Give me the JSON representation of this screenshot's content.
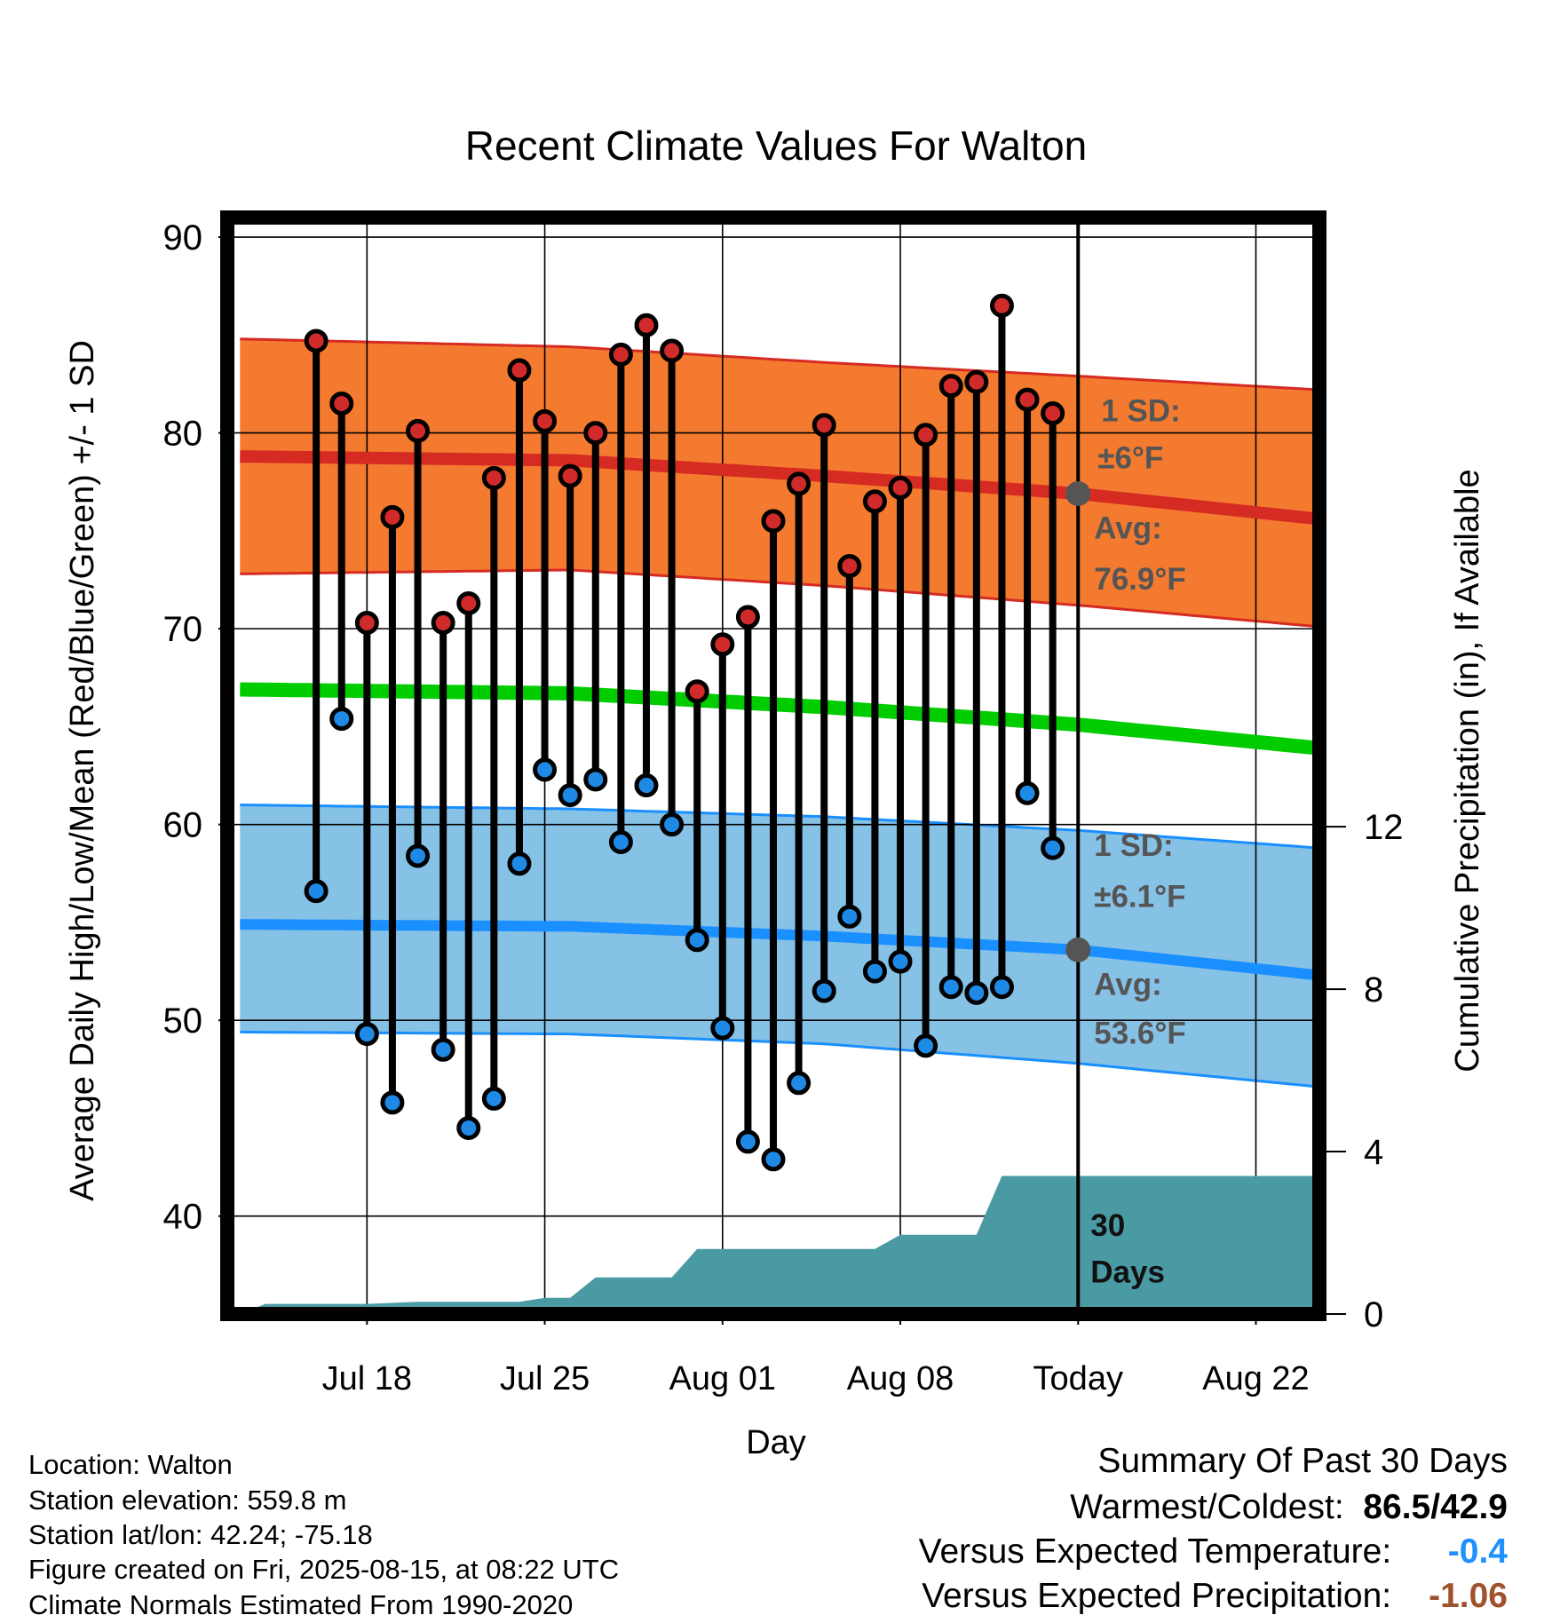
{
  "chart_data": {
    "type": "line",
    "title": "Recent Climate Values For Walton",
    "xlabel": "Day",
    "ylabel": "Average Daily High/Low/Mean (Red/Blue/Green) +/- 1 SD",
    "y2label": "Cumulative Precipitation (in), If Available",
    "x_unit": "day (0 = Today, Aug 15)",
    "xlim": [
      -33.5,
      9.5
    ],
    "ylim": [
      35,
      91
    ],
    "y2lim": [
      0,
      27
    ],
    "x_tick_labels": [
      {
        "x": -28,
        "label": "Jul 18"
      },
      {
        "x": -21,
        "label": "Jul 25"
      },
      {
        "x": -14,
        "label": "Aug 01"
      },
      {
        "x": -7,
        "label": "Aug 08"
      },
      {
        "x": 0,
        "label": "Today"
      },
      {
        "x": 7,
        "label": "Aug 22"
      }
    ],
    "y_ticks": [
      40,
      50,
      60,
      70,
      80,
      90
    ],
    "y2_ticks": [
      0,
      4,
      8,
      12
    ],
    "daily_high": [
      84.7,
      81.5,
      70.3,
      75.7,
      80.1,
      70.3,
      71.3,
      77.7,
      83.2,
      80.6,
      77.8,
      80.0,
      84.0,
      85.5,
      84.2,
      66.8,
      69.2,
      70.6,
      75.5,
      77.4,
      80.4,
      73.2,
      76.5,
      77.2,
      79.9,
      82.4,
      82.6,
      86.5,
      81.7,
      81.0
    ],
    "daily_low": [
      56.6,
      65.4,
      49.3,
      45.8,
      58.4,
      48.5,
      44.5,
      46.0,
      58.0,
      62.8,
      61.5,
      62.3,
      59.1,
      62.0,
      60.0,
      54.1,
      49.6,
      43.8,
      42.9,
      46.8,
      51.5,
      55.3,
      52.5,
      53.0,
      48.7,
      51.7,
      51.4,
      51.7,
      61.6,
      58.8
    ],
    "daily_x_start": -30,
    "normal_high_avg": [
      [
        -33,
        78.8
      ],
      [
        -20,
        78.6
      ],
      [
        -10,
        77.8
      ],
      [
        0,
        76.9
      ],
      [
        9.5,
        75.6
      ]
    ],
    "normal_high_upper": [
      [
        -33,
        84.8
      ],
      [
        -20,
        84.4
      ],
      [
        -10,
        83.6
      ],
      [
        0,
        82.9
      ],
      [
        9.5,
        82.2
      ]
    ],
    "normal_high_lower": [
      [
        -33,
        72.8
      ],
      [
        -20,
        73.0
      ],
      [
        -10,
        72.2
      ],
      [
        0,
        71.2
      ],
      [
        9.5,
        70.1
      ]
    ],
    "normal_mean": [
      [
        -33,
        66.9
      ],
      [
        -20,
        66.7
      ],
      [
        -10,
        66.0
      ],
      [
        0,
        65.1
      ],
      [
        9.5,
        63.9
      ]
    ],
    "normal_low_avg": [
      [
        -33,
        54.9
      ],
      [
        -20,
        54.8
      ],
      [
        -10,
        54.3
      ],
      [
        0,
        53.6
      ],
      [
        9.5,
        52.3
      ]
    ],
    "normal_low_upper": [
      [
        -33,
        61.0
      ],
      [
        -20,
        60.8
      ],
      [
        -10,
        60.4
      ],
      [
        0,
        59.7
      ],
      [
        9.5,
        58.8
      ]
    ],
    "normal_low_lower": [
      [
        -33,
        49.4
      ],
      [
        -20,
        49.3
      ],
      [
        -10,
        48.8
      ],
      [
        0,
        47.8
      ],
      [
        9.5,
        46.6
      ]
    ],
    "cumulative_precip": [
      [
        -33,
        0.0
      ],
      [
        -32,
        0.25
      ],
      [
        -28,
        0.25
      ],
      [
        -26,
        0.3
      ],
      [
        -22,
        0.3
      ],
      [
        -21,
        0.4
      ],
      [
        -20,
        0.4
      ],
      [
        -19,
        0.9
      ],
      [
        -17,
        0.9
      ],
      [
        -16,
        0.9
      ],
      [
        -15,
        1.6
      ],
      [
        -14,
        1.6
      ],
      [
        -8,
        1.6
      ],
      [
        -7,
        1.95
      ],
      [
        -5,
        1.95
      ],
      [
        -4,
        1.95
      ],
      [
        -3,
        3.4
      ],
      [
        9.5,
        3.4
      ]
    ],
    "annotations": {
      "high_sd": [
        "1 SD:",
        "±6°F"
      ],
      "high_avg": [
        "Avg:",
        "76.9°F"
      ],
      "low_sd": [
        "1 SD:",
        "±6.1°F"
      ],
      "low_avg": [
        "Avg:",
        "53.6°F"
      ],
      "window": [
        "30",
        "Days"
      ]
    },
    "colors": {
      "high_band": "#f47a2f",
      "high_line": "#d62b23",
      "low_band": "#86c1e6",
      "low_line": "#1a8fff",
      "mean_line": "#00cc00",
      "precip": "#4a9aa4",
      "annotation": "#555555",
      "marker_high": "#d12a2a",
      "marker_low": "#1e8ae6"
    }
  },
  "station_info": [
    "Location: Walton",
    "Station elevation: 559.8 m",
    "Station lat/lon: 42.24; -75.18",
    "Figure created on Fri, 2025-08-15, at 08:22 UTC",
    "Climate Normals Estimated From 1990-2020"
  ],
  "summary": {
    "title": "Summary Of Past 30 Days",
    "warm_cold_label": "Warmest/Coldest:",
    "warm_cold_value": "86.5/42.9",
    "temp_label": "Versus Expected Temperature:",
    "temp_value": "-0.4",
    "temp_color": "#1e90ff",
    "precip_label": "Versus Expected Precipitation:",
    "precip_value": "-1.06",
    "precip_color": "#a0522d"
  }
}
